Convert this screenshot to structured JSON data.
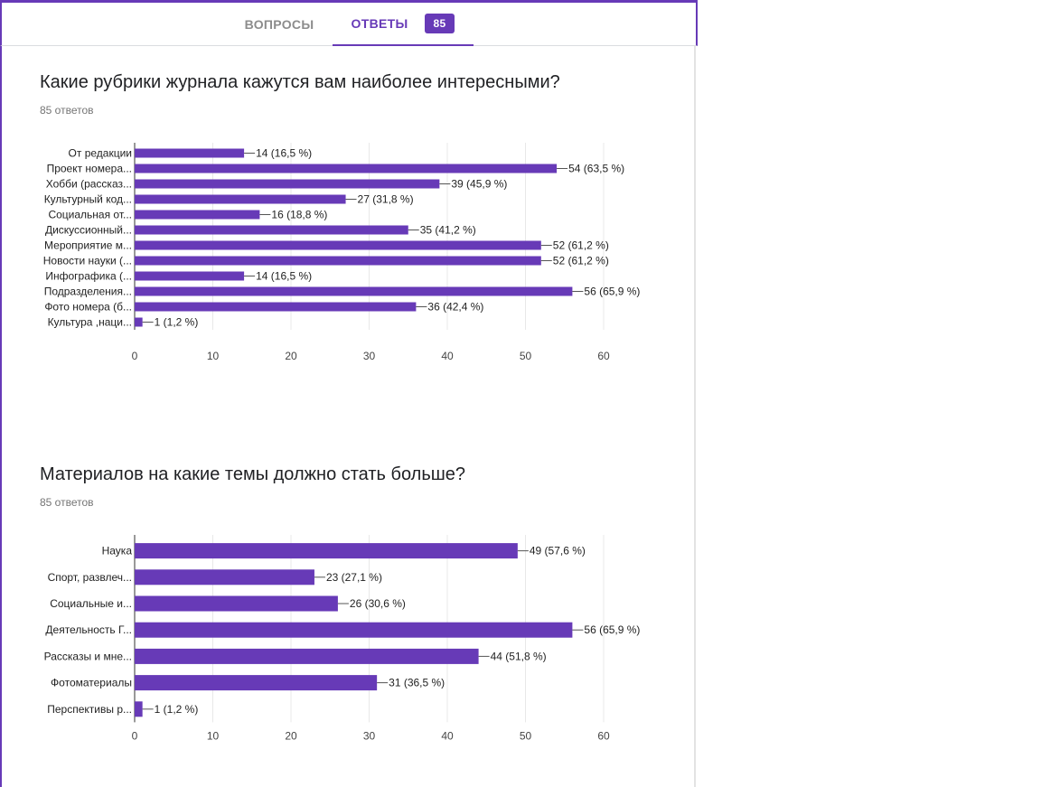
{
  "tabs": {
    "questions_label": "ВОПРОСЫ",
    "responses_label": "ОТВЕТЫ",
    "responses_count": "85"
  },
  "sections": [
    {
      "title": "Какие рубрики журнала кажутся вам наиболее интересными?",
      "count_text": "85 ответов"
    },
    {
      "title": "Материалов на какие темы должно стать больше?",
      "count_text": "85 ответов"
    }
  ],
  "colors": {
    "accent": "#673ab7",
    "bar": "#673ab7",
    "grid": "#e8e8e8"
  },
  "chart_data": [
    {
      "type": "bar",
      "orientation": "horizontal",
      "categories": [
        "От редакции",
        "Проект номера...",
        "Хобби (рассказ...",
        "Культурный код...",
        "Социальная от...",
        "Дискуссионный...",
        "Мероприятие м...",
        "Новости науки (...",
        "Инфографика (...",
        "Подразделения...",
        "Фото номера (б...",
        "Культура ,наци..."
      ],
      "values": [
        14,
        54,
        39,
        27,
        16,
        35,
        52,
        52,
        14,
        56,
        36,
        1
      ],
      "data_labels": [
        "14 (16,5 %)",
        "54 (63,5 %)",
        "39 (45,9 %)",
        "27 (31,8 %)",
        "16 (18,8 %)",
        "35 (41,2 %)",
        "52 (61,2 %)",
        "52 (61,2 %)",
        "14 (16,5 %)",
        "56 (65,9 %)",
        "36 (42,4 %)",
        "1 (1,2 %)"
      ],
      "x_ticks": [
        "0",
        "10",
        "20",
        "30",
        "40",
        "50",
        "60"
      ],
      "xlim": [
        0,
        60
      ],
      "grid": true
    },
    {
      "type": "bar",
      "orientation": "horizontal",
      "categories": [
        "Наука",
        "Спорт, развлеч...",
        "Социальные и...",
        "Деятельность Г...",
        "Рассказы и мне...",
        "Фотоматериалы",
        "Перспективы р..."
      ],
      "values": [
        49,
        23,
        26,
        56,
        44,
        31,
        1
      ],
      "data_labels": [
        "49 (57,6 %)",
        "23 (27,1 %)",
        "26 (30,6 %)",
        "56 (65,9 %)",
        "44 (51,8 %)",
        "31 (36,5 %)",
        "1 (1,2 %)"
      ],
      "x_ticks": [
        "0",
        "10",
        "20",
        "30",
        "40",
        "50",
        "60"
      ],
      "xlim": [
        0,
        60
      ],
      "grid": true
    }
  ]
}
